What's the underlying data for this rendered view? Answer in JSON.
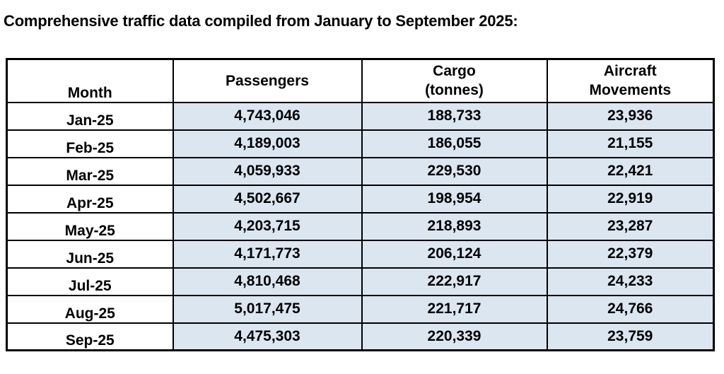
{
  "title": "Comprehensive traffic data compiled from January to September 2025:",
  "table": {
    "columns": [
      "Month",
      "Passengers",
      "Cargo (tonnes)",
      "Aircraft Movements"
    ],
    "rows": [
      [
        "Jan-25",
        "4,743,046",
        "188,733",
        "23,936"
      ],
      [
        "Feb-25",
        "4,189,003",
        "186,055",
        "21,155"
      ],
      [
        "Mar-25",
        "4,059,933",
        "229,530",
        "22,421"
      ],
      [
        "Apr-25",
        "4,502,667",
        "198,954",
        "22,919"
      ],
      [
        "May-25",
        "4,203,715",
        "218,893",
        "23,287"
      ],
      [
        "Jun-25",
        "4,171,773",
        "206,124",
        "22,379"
      ],
      [
        "Jul-25",
        "4,810,468",
        "222,917",
        "24,233"
      ],
      [
        "Aug-25",
        "5,017,475",
        "221,717",
        "24,766"
      ],
      [
        "Sep-25",
        "4,475,303",
        "220,339",
        "23,759"
      ]
    ]
  },
  "colors": {
    "page_bg": "#ffffff",
    "header_bg": "#ffffff",
    "month_col_bg": "#ffffff",
    "data_cell_bg": "#dce6f1",
    "border": "#000000",
    "text": "#000000"
  }
}
